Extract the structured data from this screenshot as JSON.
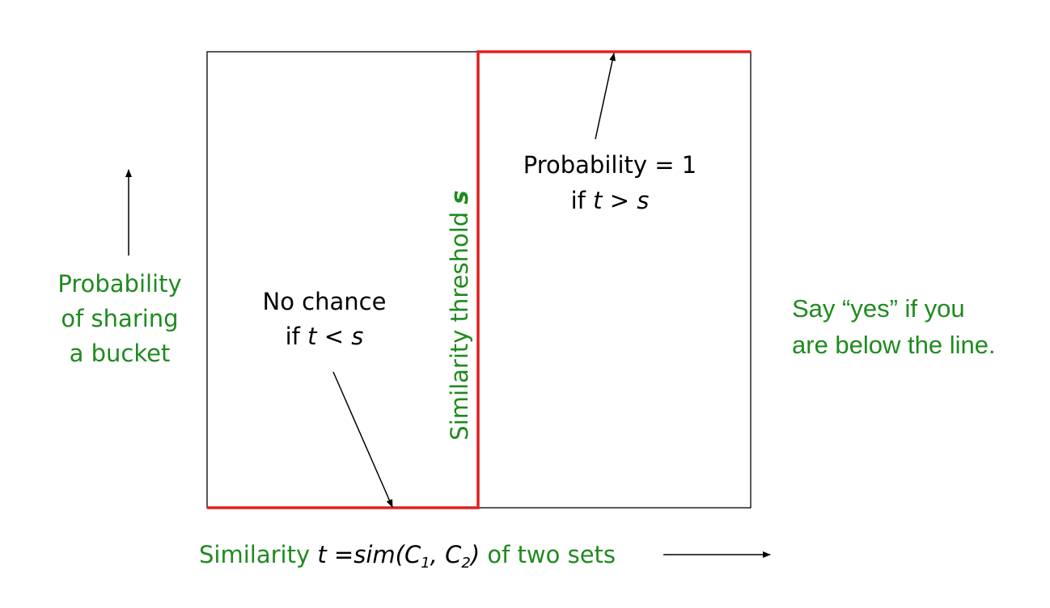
{
  "y_axis_label": {
    "line1": "Probability",
    "line2": "of sharing",
    "line3": "a bucket"
  },
  "x_axis_label": {
    "prefix": "Similarity ",
    "t": "t",
    "eq": " =sim(C",
    "sub1": "1",
    "comma": ", C",
    "sub2": "2",
    "close": ")",
    "suffix": " of two sets"
  },
  "threshold_label": {
    "text": "Similarity threshold ",
    "s": "s"
  },
  "no_chance": {
    "line1": "No chance",
    "if": "if ",
    "t": "t",
    "lt": " < ",
    "s": "s"
  },
  "probability_one": {
    "line1": "Probability = 1",
    "if": "if ",
    "t": "t",
    "gt": " > ",
    "s": "s"
  },
  "say_yes": {
    "line1": "Say “yes” if you",
    "line2": "are below the line."
  },
  "colors": {
    "green": "#1f8a1f",
    "red": "#e02020",
    "black": "#000000"
  }
}
